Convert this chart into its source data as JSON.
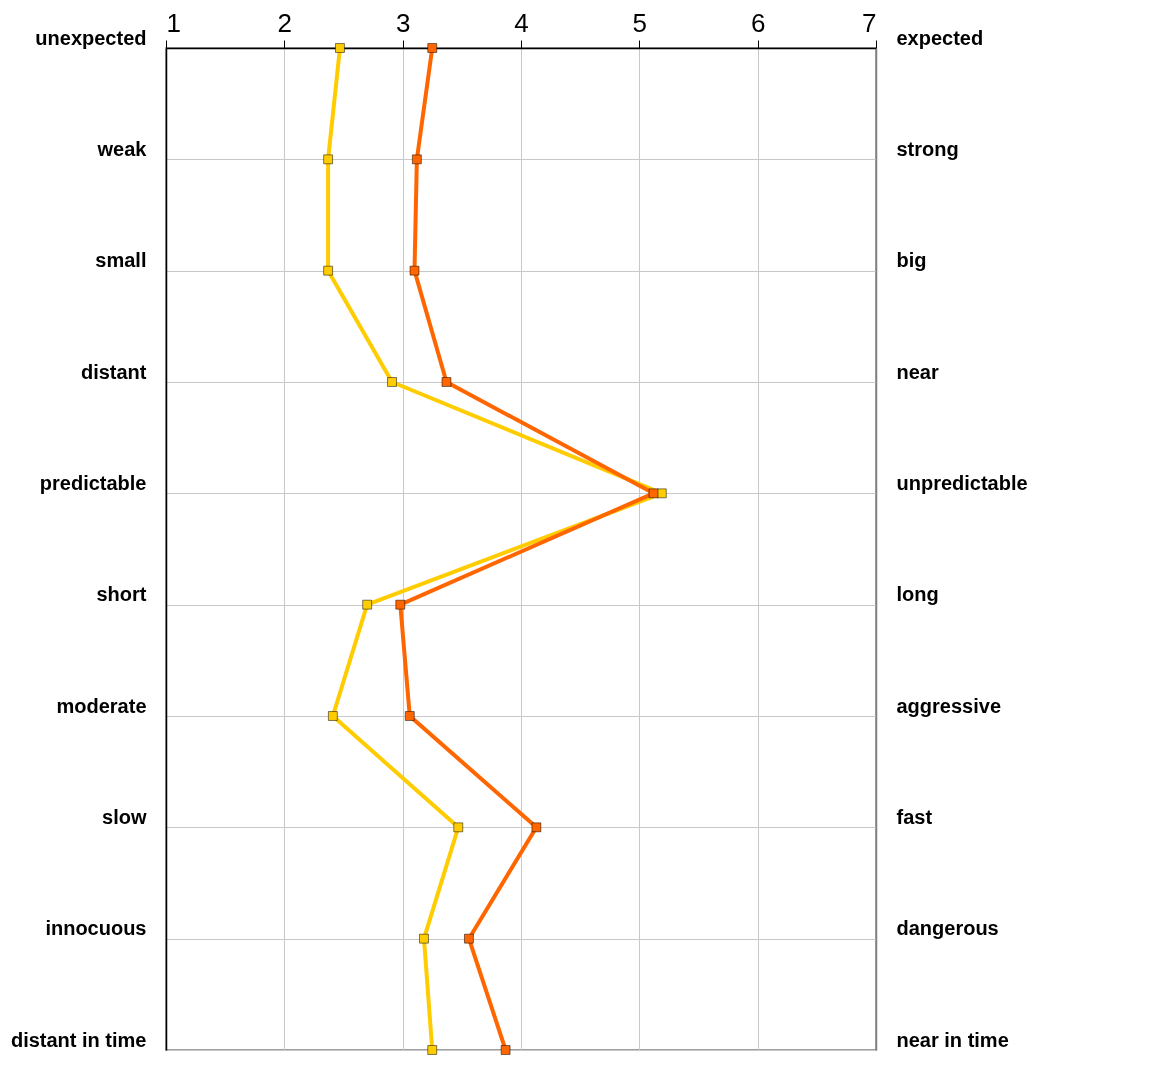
{
  "chart_data": {
    "type": "line",
    "orientation": "horizontal",
    "categories": [
      "unexpected",
      "weak",
      "small",
      "distant",
      "predictable",
      "short",
      "moderate",
      "slow",
      "innocuous",
      "distant in time"
    ],
    "y2_categories": [
      "expected",
      "strong",
      "big",
      "near",
      "unpredictable",
      "long",
      "aggressive",
      "fast",
      "dangerous",
      "near in time"
    ],
    "series": [
      {
        "color": "#ffcc00",
        "values": [
          2.47,
          2.37,
          2.37,
          2.91,
          5.19,
          2.7,
          2.41,
          3.47,
          3.18,
          3.25
        ]
      },
      {
        "color": "#ff6600",
        "values": [
          3.25,
          3.12,
          3.1,
          3.37,
          5.12,
          2.98,
          3.06,
          4.13,
          3.56,
          3.87
        ]
      }
    ],
    "xlim": [
      1,
      7
    ],
    "xticks": [
      1,
      2,
      3,
      4,
      5,
      6,
      7
    ],
    "grid": true,
    "marker": "square",
    "line_style": "solid"
  }
}
